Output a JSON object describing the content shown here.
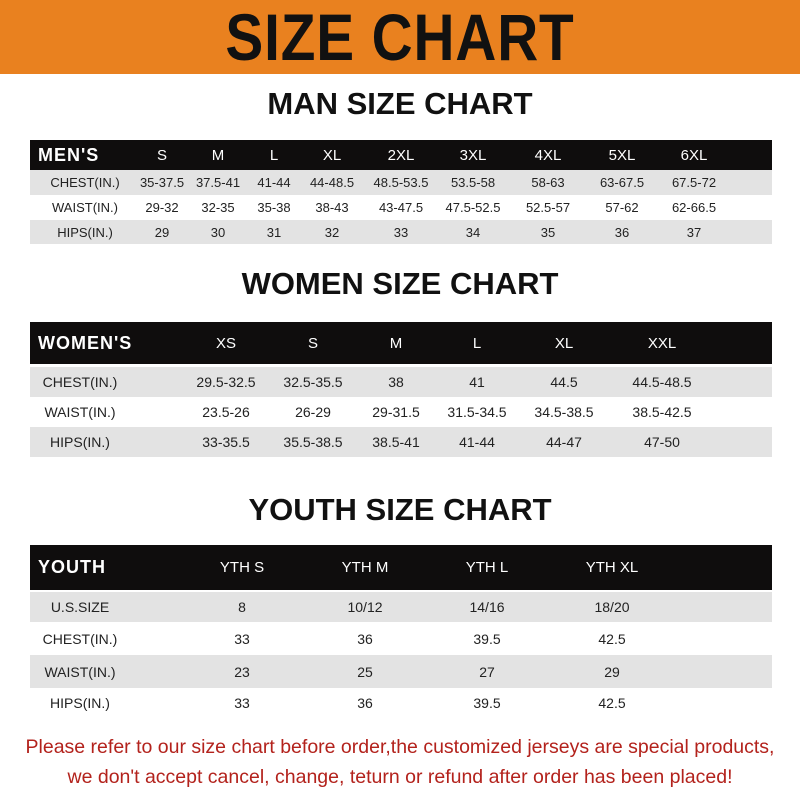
{
  "banner": {
    "title": "SIZE CHART",
    "color": "#e9811f"
  },
  "men": {
    "title": "MAN SIZE CHART",
    "header": [
      "MEN'S",
      "S",
      "M",
      "L",
      "XL",
      "2XL",
      "3XL",
      "4XL",
      "5XL",
      "6XL"
    ],
    "rows": [
      [
        "CHEST(IN.)",
        "35-37.5",
        "37.5-41",
        "41-44",
        "44-48.5",
        "48.5-53.5",
        "53.5-58",
        "58-63",
        "63-67.5",
        "67.5-72"
      ],
      [
        "WAIST(IN.)",
        "29-32",
        "32-35",
        "35-38",
        "38-43",
        "43-47.5",
        "47.5-52.5",
        "52.5-57",
        "57-62",
        "62-66.5"
      ],
      [
        "HIPS(IN.)",
        "29",
        "30",
        "31",
        "32",
        "33",
        "34",
        "35",
        "36",
        "37"
      ]
    ]
  },
  "women": {
    "title": "WOMEN SIZE CHART",
    "header": [
      "WOMEN'S",
      "XS",
      "S",
      "M",
      "L",
      "XL",
      "XXL"
    ],
    "rows": [
      [
        "CHEST(IN.)",
        "29.5-32.5",
        "32.5-35.5",
        "38",
        "41",
        "44.5",
        "44.5-48.5"
      ],
      [
        "WAIST(IN.)",
        "23.5-26",
        "26-29",
        "29-31.5",
        "31.5-34.5",
        "34.5-38.5",
        "38.5-42.5"
      ],
      [
        "HIPS(IN.)",
        "33-35.5",
        "35.5-38.5",
        "38.5-41",
        "41-44",
        "44-47",
        "47-50"
      ]
    ]
  },
  "youth": {
    "title": "YOUTH SIZE CHART",
    "header": [
      "YOUTH",
      "YTH S",
      "YTH M",
      "YTH L",
      "YTH XL"
    ],
    "rows": [
      [
        "U.S.SIZE",
        "8",
        "10/12",
        "14/16",
        "18/20"
      ],
      [
        "CHEST(IN.)",
        "33",
        "36",
        "39.5",
        "42.5"
      ],
      [
        "WAIST(IN.)",
        "23",
        "25",
        "27",
        "29"
      ],
      [
        "HIPS(IN.)",
        "33",
        "36",
        "39.5",
        "42.5"
      ]
    ]
  },
  "footer": {
    "line1": "Please refer to our size chart before order,the customized jerseys are special products,",
    "line2": "we don't accept cancel, change, teturn or refund after order has been placed!",
    "color": "#b3221c"
  }
}
